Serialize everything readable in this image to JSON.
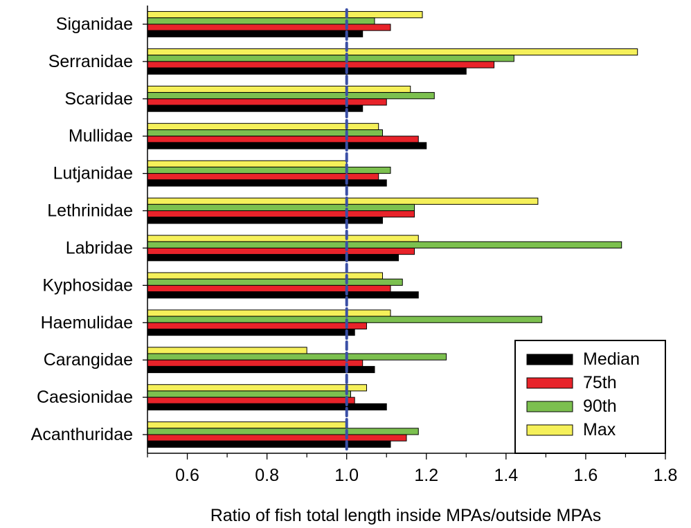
{
  "chart_data": {
    "type": "bar",
    "orientation": "horizontal",
    "xlabel": "Ratio of fish total length inside MPAs/outside MPAs",
    "ylabel": "",
    "xlim": [
      0.5,
      1.8
    ],
    "x_ticks": [
      "0.6",
      "0.8",
      "1.0",
      "1.2",
      "1.4",
      "1.6",
      "1.8"
    ],
    "reference_line": 1.0,
    "categories": [
      "Siganidae",
      "Serranidae",
      "Scaridae",
      "Mullidae",
      "Lutjanidae",
      "Lethrinidae",
      "Labridae",
      "Kyphosidae",
      "Haemulidae",
      "Carangidae",
      "Caesionidae",
      "Acanthuridae"
    ],
    "series": [
      {
        "name": "Max",
        "values": [
          1.19,
          1.73,
          1.16,
          1.08,
          1.0,
          1.48,
          1.18,
          1.09,
          1.11,
          0.9,
          1.05,
          1.0
        ]
      },
      {
        "name": "90th",
        "values": [
          1.07,
          1.42,
          1.22,
          1.09,
          1.11,
          1.17,
          1.69,
          1.14,
          1.49,
          1.25,
          1.01,
          1.18
        ]
      },
      {
        "name": "75th",
        "values": [
          1.11,
          1.37,
          1.1,
          1.18,
          1.08,
          1.17,
          1.17,
          1.11,
          1.05,
          1.04,
          1.02,
          1.15
        ]
      },
      {
        "name": "Median",
        "values": [
          1.04,
          1.3,
          1.04,
          1.2,
          1.1,
          1.09,
          1.13,
          1.18,
          1.02,
          1.07,
          1.1,
          1.11
        ]
      }
    ],
    "legend": {
      "placement": "bottom-right",
      "entries": [
        "Median",
        "75th",
        "90th",
        "Max"
      ]
    },
    "colors": {
      "Median": "#000000",
      "75th": "#e8232a",
      "90th": "#7cc04f",
      "Max": "#f5f05a",
      "reference_line": "#3a4fa6"
    },
    "grid": false
  }
}
